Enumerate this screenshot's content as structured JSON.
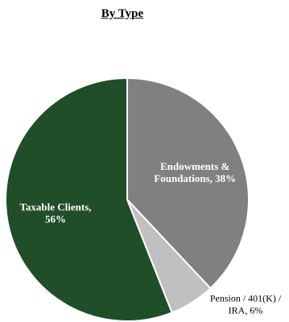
{
  "chart_data": {
    "type": "pie",
    "title": "By Type",
    "slices": [
      {
        "label_lines": [
          "Endowments &",
          "Foundations, 38%"
        ],
        "value": 38,
        "color": "#808080",
        "label_color": "#ffffff",
        "label_bold": true,
        "label_position": "inside"
      },
      {
        "label_lines": [
          "Pension / 401(K) /",
          "IRA, 6%"
        ],
        "value": 6,
        "color": "#c0c0c0",
        "label_color": "#000000",
        "label_bold": false,
        "label_position": "outside"
      },
      {
        "label_lines": [
          "Taxable Clients,",
          "56%"
        ],
        "value": 56,
        "color": "#1f4e28",
        "label_color": "#ffffff",
        "label_bold": true,
        "label_position": "inside"
      }
    ],
    "start_angle": "12 o'clock",
    "direction": "clockwise",
    "legend": "none"
  }
}
